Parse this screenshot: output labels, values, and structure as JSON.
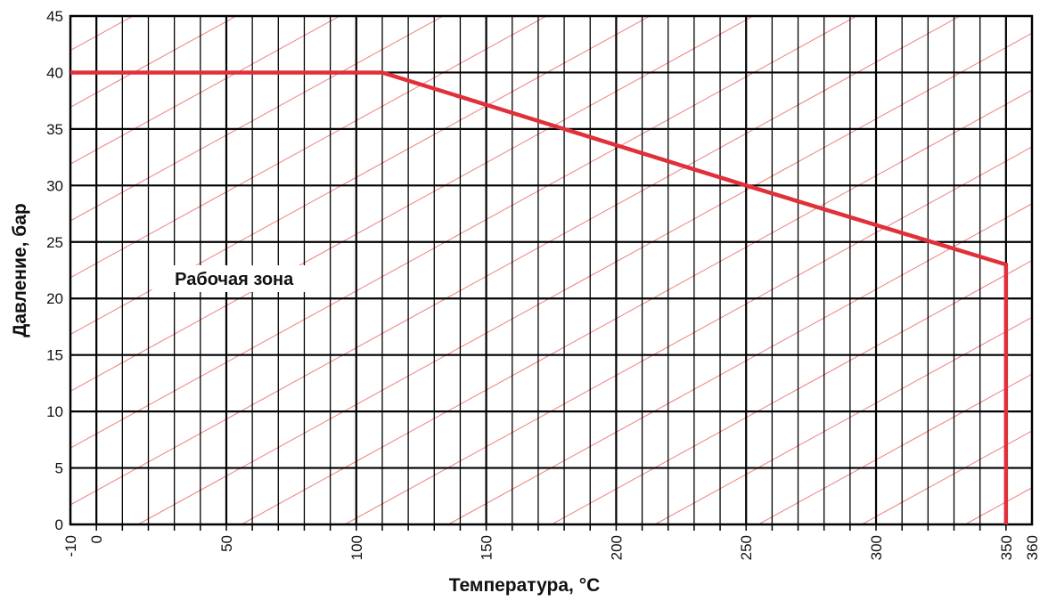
{
  "chart_data": {
    "type": "area",
    "title": "",
    "xlabel": "Температура, °C",
    "ylabel": "Давление, бар",
    "xlim": [
      -10,
      360
    ],
    "ylim": [
      0,
      45
    ],
    "x_ticks": [
      -10,
      0,
      50,
      100,
      150,
      200,
      250,
      300,
      350,
      360
    ],
    "y_ticks": [
      0,
      5,
      10,
      15,
      20,
      25,
      30,
      35,
      40,
      45
    ],
    "grid": true,
    "annotation": "Рабочая зона",
    "series": [
      {
        "x": [
          -10,
          110,
          250,
          350,
          350
        ],
        "y": [
          40,
          40,
          30,
          23,
          0
        ]
      }
    ],
    "colors": {
      "boundary": "#e0303a",
      "hatch": "#f08080",
      "grid": "#000000"
    }
  }
}
